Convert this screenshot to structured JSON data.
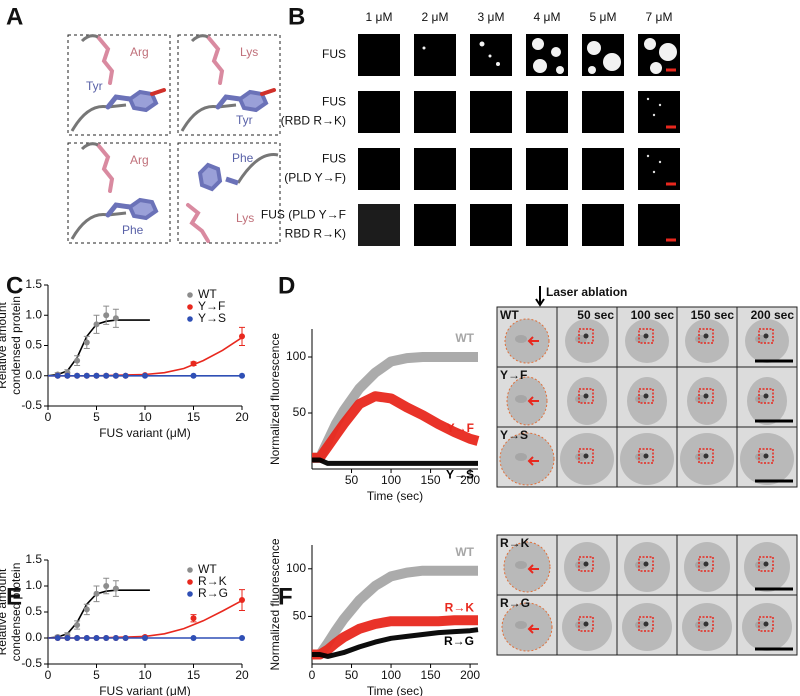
{
  "panel_labels": [
    "A",
    "B",
    "C",
    "D",
    "E",
    "F"
  ],
  "panel_a": {
    "boxes": [
      [
        "Arg",
        "Tyr"
      ],
      [
        "Lys",
        "Tyr"
      ],
      [
        "Arg",
        "Phe"
      ],
      [
        "Phe",
        "Lys"
      ]
    ]
  },
  "panel_b": {
    "columns": [
      "1 μM",
      "2 μM",
      "3 μM",
      "4 μM",
      "5 μM",
      "7 μM"
    ],
    "rows": [
      [
        "FUS"
      ],
      [
        "FUS",
        "(RBD R→K)"
      ],
      [
        "FUS",
        "(PLD Y→F)"
      ],
      [
        "FUS (PLD Y→F",
        "RBD R→K)"
      ]
    ]
  },
  "panel_d_images": {
    "annotation": "Laser ablation",
    "columns": [
      "50 sec",
      "100 sec",
      "150 sec",
      "200 sec"
    ],
    "rows": [
      "WT",
      "Y→F",
      "Y→S"
    ]
  },
  "panel_f_images": {
    "rows": [
      "R→K",
      "R→G"
    ]
  },
  "chart_data": [
    {
      "type": "scatter",
      "xlabel": "FUS variant (μM)",
      "ylabel": [
        "Relative amount",
        "condensed protein"
      ],
      "xlim": [
        0,
        20
      ],
      "ylim": [
        -0.5,
        1.5
      ],
      "xticks": [
        0,
        5,
        10,
        15,
        20
      ],
      "yticks": [
        -0.5,
        {
          "value": 0,
          "label": "0.0"
        },
        0.5,
        {
          "value": 1,
          "label": "1.0"
        },
        1.5
      ],
      "series": [
        {
          "name": "WT",
          "color": "#8c8c8c",
          "x": [
            1,
            2,
            3,
            4,
            5,
            6,
            7
          ],
          "values": [
            0.02,
            0.05,
            0.25,
            0.55,
            0.85,
            1.0,
            0.95
          ],
          "errors": [
            0.03,
            0.05,
            0.08,
            0.1,
            0.15,
            0.15,
            0.15
          ]
        },
        {
          "name": "Y→F",
          "color": "#e8281e",
          "x": [
            1,
            2,
            3,
            4,
            5,
            6,
            7,
            8,
            10,
            15,
            20
          ],
          "values": [
            0,
            0,
            0,
            0,
            0,
            0,
            0,
            0,
            0.01,
            0.2,
            0.65
          ],
          "errors": [
            0,
            0,
            0,
            0,
            0,
            0,
            0,
            0,
            0.01,
            0.03,
            0.15
          ]
        },
        {
          "name": "Y→S",
          "color": "#2f4fb5",
          "x": [
            1,
            2,
            3,
            4,
            5,
            6,
            7,
            8,
            10,
            15,
            20
          ],
          "values": [
            0,
            0,
            0,
            0,
            0,
            0,
            0,
            0,
            0,
            0,
            0
          ],
          "errors": [
            0,
            0,
            0,
            0,
            0,
            0,
            0,
            0,
            0,
            0,
            0
          ]
        }
      ],
      "fits": [
        {
          "color": "#000000",
          "x": [
            0,
            1,
            2,
            3,
            4,
            5,
            6,
            7,
            8,
            9,
            10.5
          ],
          "values": [
            0,
            0.02,
            0.08,
            0.3,
            0.65,
            0.85,
            0.9,
            0.92,
            0.92,
            0.92,
            0.92
          ]
        },
        {
          "color": "#e8281e",
          "x": [
            0,
            5,
            10,
            12,
            14,
            16,
            18,
            20
          ],
          "values": [
            0,
            0,
            0.02,
            0.05,
            0.12,
            0.25,
            0.42,
            0.63
          ]
        },
        {
          "color": "#2f4fb5",
          "x": [
            0,
            20
          ],
          "values": [
            0,
            0
          ]
        }
      ]
    },
    {
      "type": "line",
      "xlabel": "Time (sec)",
      "ylabel": [
        "Normalized fluorescence"
      ],
      "xlim": [
        0,
        210
      ],
      "ylim": [
        0,
        125
      ],
      "xticks": [
        50,
        100,
        150,
        200
      ],
      "yticks": [
        50,
        100
      ],
      "x": [
        0,
        10,
        20,
        30,
        40,
        60,
        80,
        100,
        120,
        140,
        160,
        180,
        200,
        210
      ],
      "series": [
        {
          "name": "WT",
          "color": "#a6a6a6",
          "values": [
            10,
            10,
            25,
            40,
            52,
            72,
            86,
            96,
            99,
            100,
            100,
            100,
            100,
            100
          ]
        },
        {
          "name": "Y→F",
          "color": "#e8281e",
          "values": [
            10,
            10,
            20,
            30,
            40,
            58,
            65,
            63,
            55,
            48,
            40,
            33,
            27,
            25
          ]
        },
        {
          "name": "Y→S",
          "color": "#000000",
          "values": [
            8,
            8,
            5,
            5,
            5,
            5,
            5,
            5,
            5,
            5,
            5,
            5,
            5,
            5
          ]
        }
      ]
    },
    {
      "type": "scatter",
      "xlabel": "FUS variant (μM)",
      "ylabel": [
        "Relative amount",
        "condensed protein"
      ],
      "xlim": [
        0,
        20
      ],
      "ylim": [
        -0.5,
        1.5
      ],
      "xticks": [
        0,
        5,
        10,
        15,
        20
      ],
      "yticks": [
        -0.5,
        {
          "value": 0,
          "label": "0.0"
        },
        0.5,
        {
          "value": 1,
          "label": "1.0"
        },
        1.5
      ],
      "series": [
        {
          "name": "WT",
          "color": "#8c8c8c",
          "x": [
            1,
            2,
            3,
            4,
            5,
            6,
            7
          ],
          "values": [
            0.02,
            0.05,
            0.25,
            0.55,
            0.85,
            1.0,
            0.95
          ],
          "errors": [
            0.03,
            0.05,
            0.08,
            0.1,
            0.15,
            0.15,
            0.15
          ]
        },
        {
          "name": "R→K",
          "color": "#e8281e",
          "x": [
            1,
            2,
            3,
            4,
            5,
            6,
            7,
            8,
            10,
            15,
            20
          ],
          "values": [
            0,
            0,
            0,
            0,
            0,
            0,
            0,
            0,
            0.02,
            0.38,
            0.73
          ],
          "errors": [
            0,
            0,
            0,
            0,
            0,
            0,
            0,
            0,
            0.02,
            0.07,
            0.2
          ]
        },
        {
          "name": "R→G",
          "color": "#2f4fb5",
          "x": [
            1,
            2,
            3,
            4,
            5,
            6,
            7,
            8,
            10,
            15,
            20
          ],
          "values": [
            0,
            0,
            0,
            0,
            0,
            0,
            0,
            0,
            0,
            0,
            0
          ],
          "errors": [
            0,
            0,
            0,
            0,
            0,
            0,
            0,
            0,
            0,
            0,
            0
          ]
        }
      ],
      "fits": [
        {
          "color": "#000000",
          "x": [
            0,
            1,
            2,
            3,
            4,
            5,
            6,
            7,
            8,
            9,
            10.5
          ],
          "values": [
            0,
            0.02,
            0.08,
            0.3,
            0.65,
            0.85,
            0.9,
            0.92,
            0.92,
            0.92,
            0.92
          ]
        },
        {
          "color": "#e8281e",
          "x": [
            0,
            5,
            10,
            12,
            14,
            16,
            18,
            20
          ],
          "values": [
            0,
            0,
            0.03,
            0.08,
            0.18,
            0.33,
            0.52,
            0.72
          ]
        },
        {
          "color": "#2f4fb5",
          "x": [
            0,
            20
          ],
          "values": [
            0,
            0
          ]
        }
      ]
    },
    {
      "type": "line",
      "xlabel": "Time (sec)",
      "ylabel": [
        "Normalized fluorescence"
      ],
      "xlim": [
        0,
        210
      ],
      "ylim": [
        0,
        125
      ],
      "xticks": [
        0,
        50,
        100,
        150,
        200
      ],
      "yticks": [
        50,
        100
      ],
      "x": [
        0,
        10,
        20,
        30,
        40,
        60,
        80,
        100,
        120,
        140,
        160,
        180,
        200,
        210
      ],
      "series": [
        {
          "name": "WT",
          "color": "#a6a6a6",
          "values": [
            10,
            10,
            22,
            35,
            47,
            67,
            82,
            92,
            96,
            98,
            98,
            98,
            98,
            98
          ]
        },
        {
          "name": "R→K",
          "color": "#e8281e",
          "values": [
            10,
            10,
            15,
            22,
            28,
            37,
            42,
            45,
            45,
            45,
            45,
            46,
            46,
            46
          ]
        },
        {
          "name": "R→G",
          "color": "#000000",
          "values": [
            10,
            10,
            8,
            10,
            12,
            18,
            23,
            27,
            29,
            31,
            33,
            34,
            35,
            36
          ]
        }
      ]
    }
  ]
}
